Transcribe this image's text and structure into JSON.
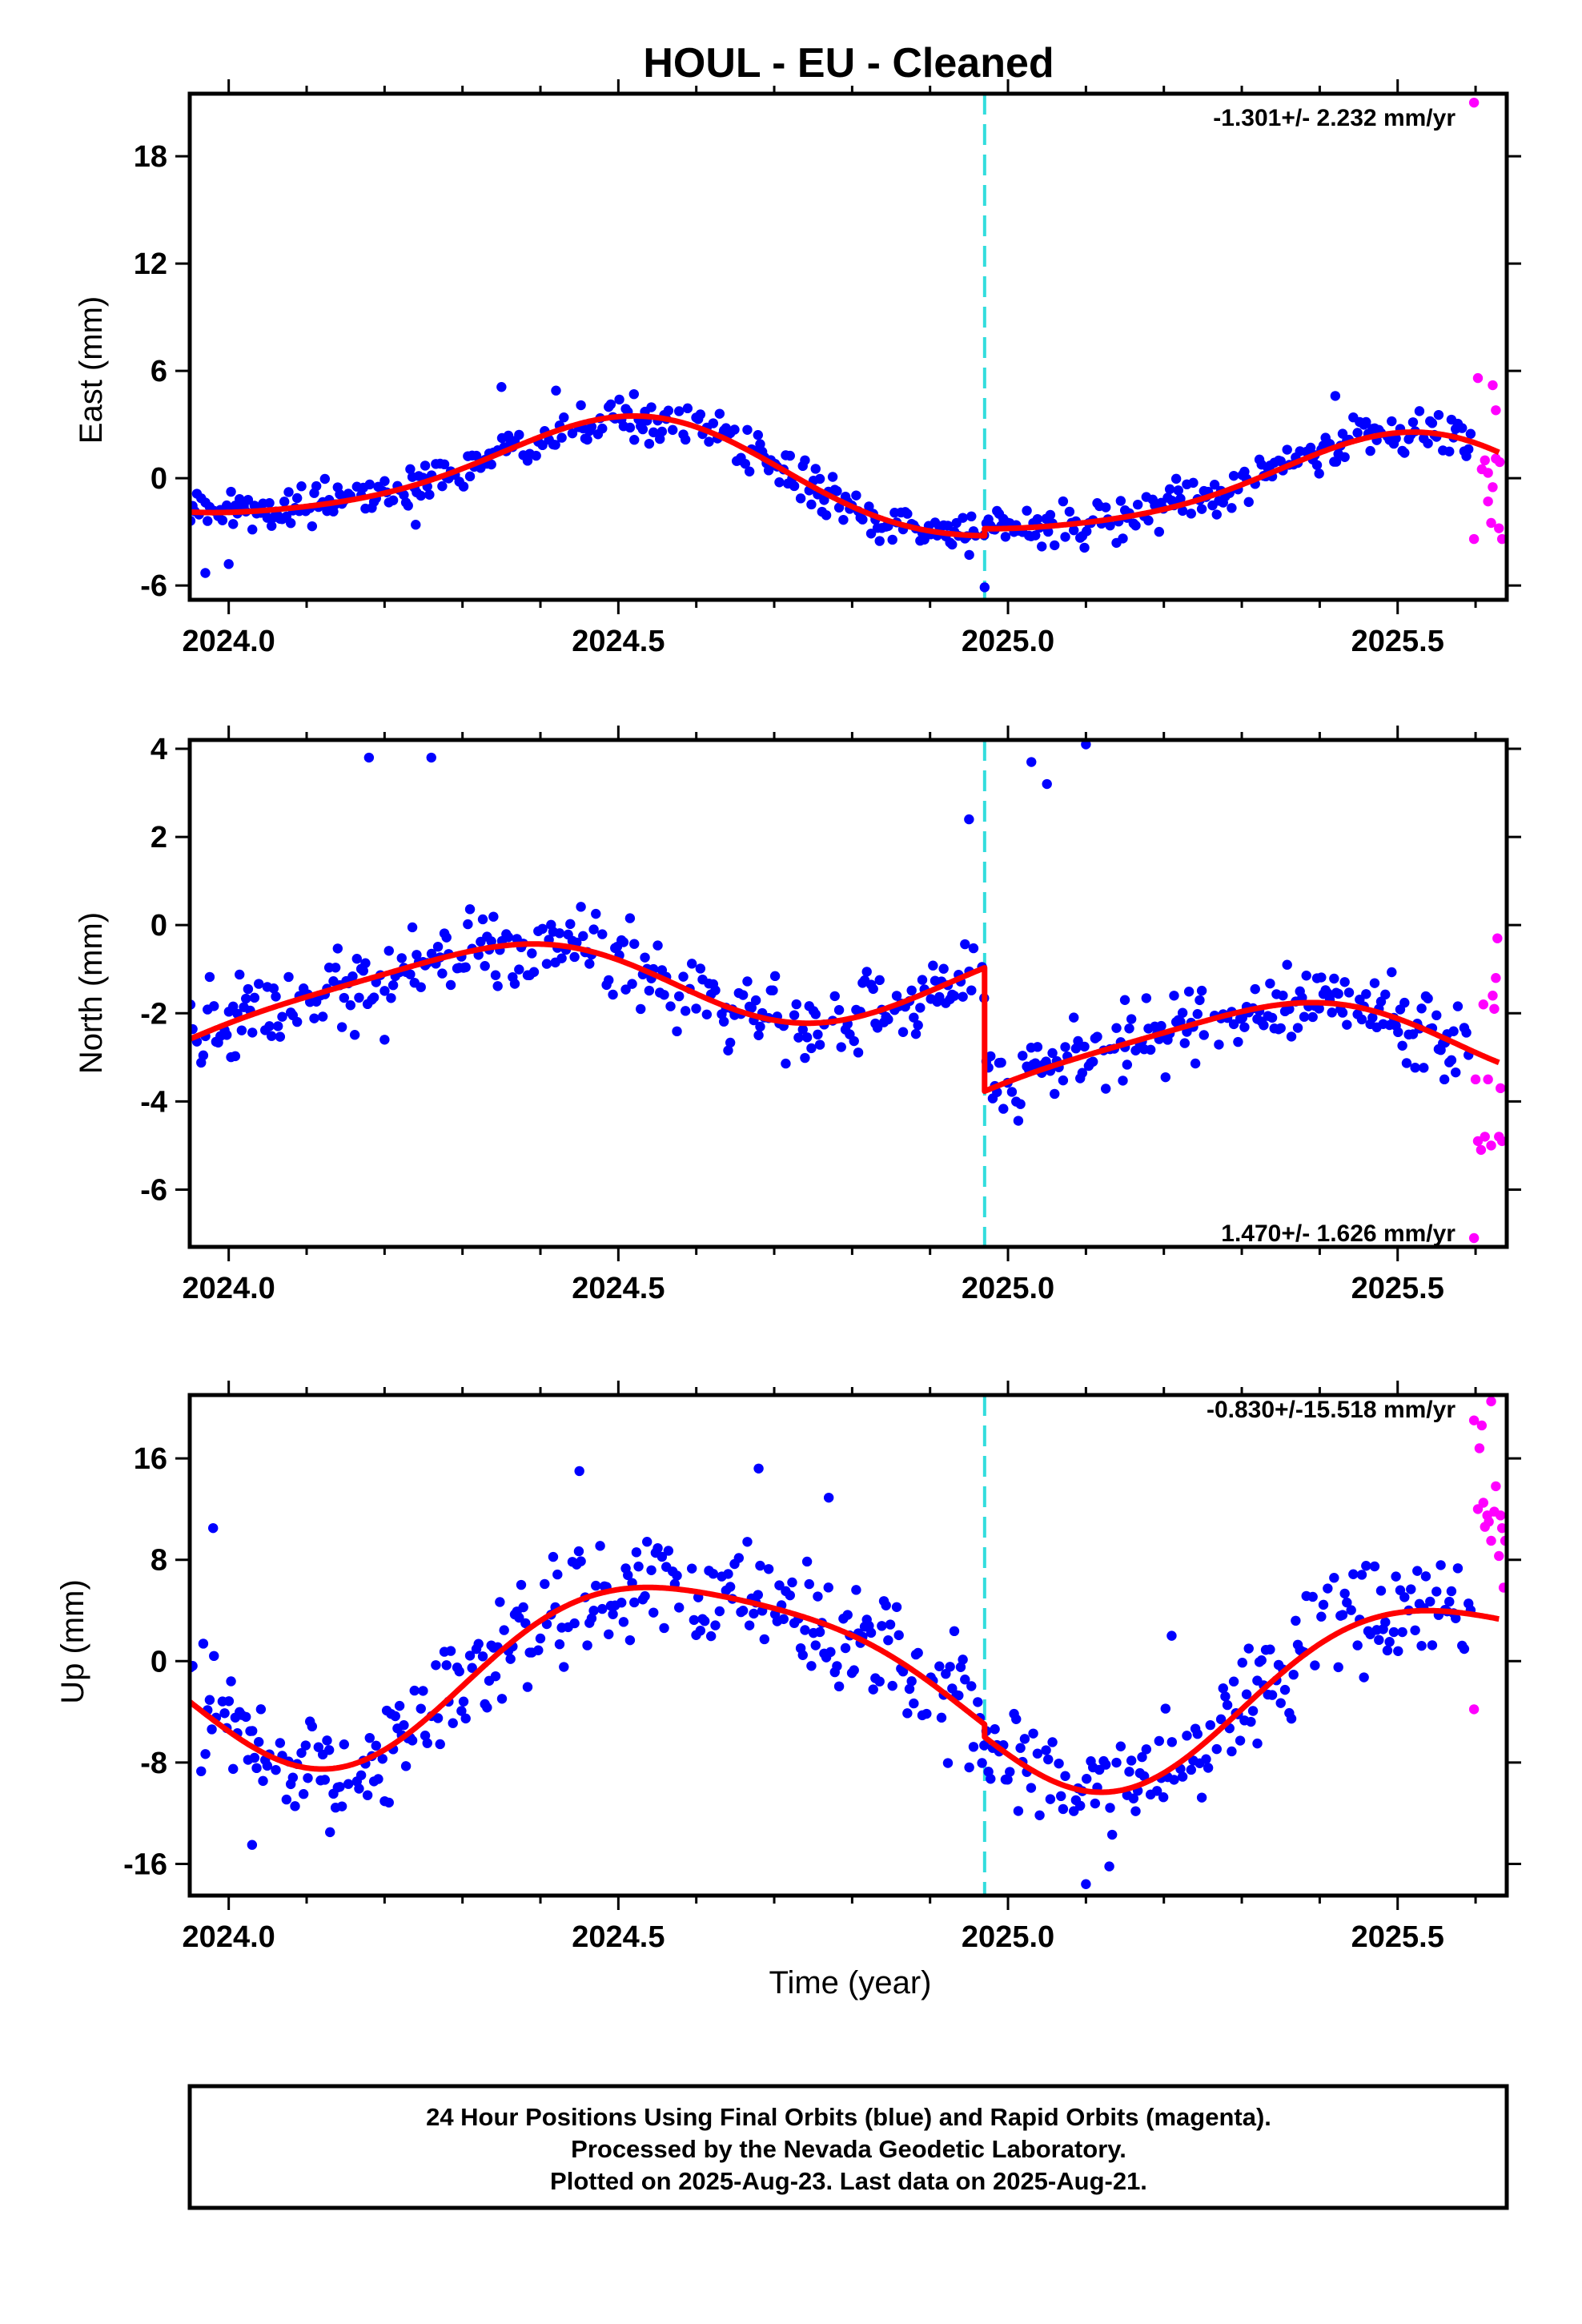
{
  "figure": {
    "title": "HOUL  - EU - Cleaned",
    "xlabel": "Time (year)",
    "footer": [
      "24 Hour Positions Using Final Orbits (blue) and Rapid Orbits (magenta).",
      "Processed by the Nevada Geodetic Laboratory.",
      "Plotted on 2025-Aug-23. Last data on 2025-Aug-21."
    ]
  },
  "colors": {
    "final_orbits": "#0000ff",
    "rapid_orbits": "#ff00ff",
    "model": "#ff0000",
    "equipment_change": "#33dddd"
  },
  "chart_data": [
    {
      "type": "scatter",
      "name": "east",
      "ylabel": "East (mm)",
      "rate_text": "-1.301+/- 2.232 mm/yr",
      "rate_position": "top-right",
      "xlim": [
        2023.95,
        2025.64
      ],
      "ylim": [
        -6.8,
        21.5
      ],
      "xticks": [
        2024.0,
        2024.5,
        2025.0,
        2025.5
      ],
      "xtick_labels": [
        "2024.0",
        "2024.5",
        "2025.0",
        "2025.5"
      ],
      "yticks": [
        -6,
        0,
        6,
        12,
        18
      ],
      "ytick_labels": [
        "-6",
        "0",
        "6",
        "12",
        "18"
      ],
      "offset_epoch": 2024.97,
      "model": {
        "rate": -1.301,
        "intercept": -0.35,
        "annual_sin": -0.2,
        "annual_cos": -3.0,
        "semiannual_sin": 0.3,
        "semiannual_cos": 0.4,
        "step": 0.4
      },
      "final_scatter": 1.0,
      "final_outliers": [
        [
          2023.97,
          -5.3
        ],
        [
          2024.0,
          -4.8
        ],
        [
          2024.24,
          -2.6
        ],
        [
          2024.35,
          5.1
        ],
        [
          2024.42,
          4.9
        ],
        [
          2024.52,
          4.7
        ],
        [
          2024.97,
          -6.1
        ],
        [
          2025.42,
          4.6
        ]
      ],
      "rapid": [
        [
          2025.598,
          21.0
        ],
        [
          2025.598,
          -3.4
        ],
        [
          2025.603,
          5.6
        ],
        [
          2025.608,
          0.5
        ],
        [
          2025.612,
          1.0
        ],
        [
          2025.616,
          -1.3
        ],
        [
          2025.616,
          0.3
        ],
        [
          2025.62,
          -2.5
        ],
        [
          2025.622,
          -0.5
        ],
        [
          2025.622,
          5.2
        ],
        [
          2025.626,
          1.1
        ],
        [
          2025.626,
          3.8
        ],
        [
          2025.63,
          -2.8
        ],
        [
          2025.631,
          0.9
        ],
        [
          2025.634,
          -3.4
        ]
      ]
    },
    {
      "type": "scatter",
      "name": "north",
      "ylabel": "North (mm)",
      "rate_text": "1.470+/- 1.626 mm/yr",
      "rate_position": "bottom-right",
      "xlim": [
        2023.95,
        2025.64
      ],
      "ylim": [
        -7.3,
        4.2
      ],
      "xticks": [
        2024.0,
        2024.5,
        2025.0,
        2025.5
      ],
      "xtick_labels": [
        "2024.0",
        "2024.5",
        "2025.0",
        "2025.5"
      ],
      "yticks": [
        -6,
        -4,
        -2,
        0,
        2,
        4
      ],
      "ytick_labels": [
        "-6",
        "-4",
        "-2",
        "0",
        "2",
        "4"
      ],
      "offset_epoch": 2024.97,
      "model": {
        "rate": 1.47,
        "intercept": -0.9,
        "annual_sin": 1.05,
        "annual_cos": -0.35,
        "semiannual_sin": -0.1,
        "semiannual_cos": 0.2,
        "step": -2.8
      },
      "final_scatter": 0.75,
      "final_outliers": [
        [
          2024.18,
          3.8
        ],
        [
          2024.2,
          -2.6
        ],
        [
          2024.26,
          3.8
        ],
        [
          2024.68,
          -2.5
        ],
        [
          2024.95,
          2.4
        ],
        [
          2025.03,
          3.7
        ],
        [
          2025.05,
          3.2
        ],
        [
          2025.1,
          4.1
        ],
        [
          2025.15,
          -1.7
        ],
        [
          2025.56,
          -3.5
        ]
      ],
      "rapid": [
        [
          2025.598,
          -7.1
        ],
        [
          2025.6,
          -3.5
        ],
        [
          2025.603,
          -4.9
        ],
        [
          2025.607,
          -5.1
        ],
        [
          2025.61,
          -1.8
        ],
        [
          2025.612,
          -4.8
        ],
        [
          2025.616,
          -3.5
        ],
        [
          2025.62,
          -5.0
        ],
        [
          2025.622,
          -1.6
        ],
        [
          2025.624,
          -1.9
        ],
        [
          2025.626,
          -1.2
        ],
        [
          2025.628,
          -0.3
        ],
        [
          2025.63,
          -4.8
        ],
        [
          2025.632,
          -3.7
        ],
        [
          2025.634,
          -4.9
        ]
      ]
    },
    {
      "type": "scatter",
      "name": "up",
      "ylabel": "Up (mm)",
      "rate_text": "-0.830+/-15.518 mm/yr",
      "rate_position": "top-right",
      "xlim": [
        2023.95,
        2025.64
      ],
      "ylim": [
        -18.5,
        21.0
      ],
      "xticks": [
        2024.0,
        2024.5,
        2025.0,
        2025.5
      ],
      "xtick_labels": [
        "2024.0",
        "2024.5",
        "2025.0",
        "2025.5"
      ],
      "yticks": [
        -16,
        -8,
        0,
        8,
        16
      ],
      "ytick_labels": [
        "-16",
        "-8",
        "0",
        "8",
        "16"
      ],
      "offset_epoch": 2024.97,
      "model": {
        "rate": -0.83,
        "intercept": -0.7,
        "annual_sin": -4.2,
        "annual_cos": -5.8,
        "semiannual_sin": -1.3,
        "semiannual_cos": 0.3,
        "step": -1.0
      },
      "final_scatter": 3.6,
      "final_outliers": [
        [
          2023.98,
          10.5
        ],
        [
          2024.03,
          -14.5
        ],
        [
          2024.13,
          -13.5
        ],
        [
          2024.45,
          15.0
        ],
        [
          2024.68,
          15.2
        ],
        [
          2024.77,
          12.9
        ],
        [
          2025.1,
          -17.6
        ],
        [
          2025.13,
          -16.2
        ],
        [
          2025.21,
          2.0
        ],
        [
          2025.32,
          -6.5
        ]
      ],
      "rapid": [
        [
          2025.598,
          19.0
        ],
        [
          2025.598,
          -3.8
        ],
        [
          2025.603,
          12.0
        ],
        [
          2025.605,
          16.8
        ],
        [
          2025.608,
          18.6
        ],
        [
          2025.61,
          12.5
        ],
        [
          2025.612,
          10.6
        ],
        [
          2025.615,
          11.5
        ],
        [
          2025.617,
          11.0
        ],
        [
          2025.62,
          20.5
        ],
        [
          2025.62,
          9.5
        ],
        [
          2025.624,
          11.8
        ],
        [
          2025.626,
          13.8
        ],
        [
          2025.63,
          8.3
        ],
        [
          2025.632,
          11.5
        ],
        [
          2025.634,
          10.5
        ],
        [
          2025.636,
          5.8
        ],
        [
          2025.638,
          9.5
        ]
      ]
    }
  ]
}
